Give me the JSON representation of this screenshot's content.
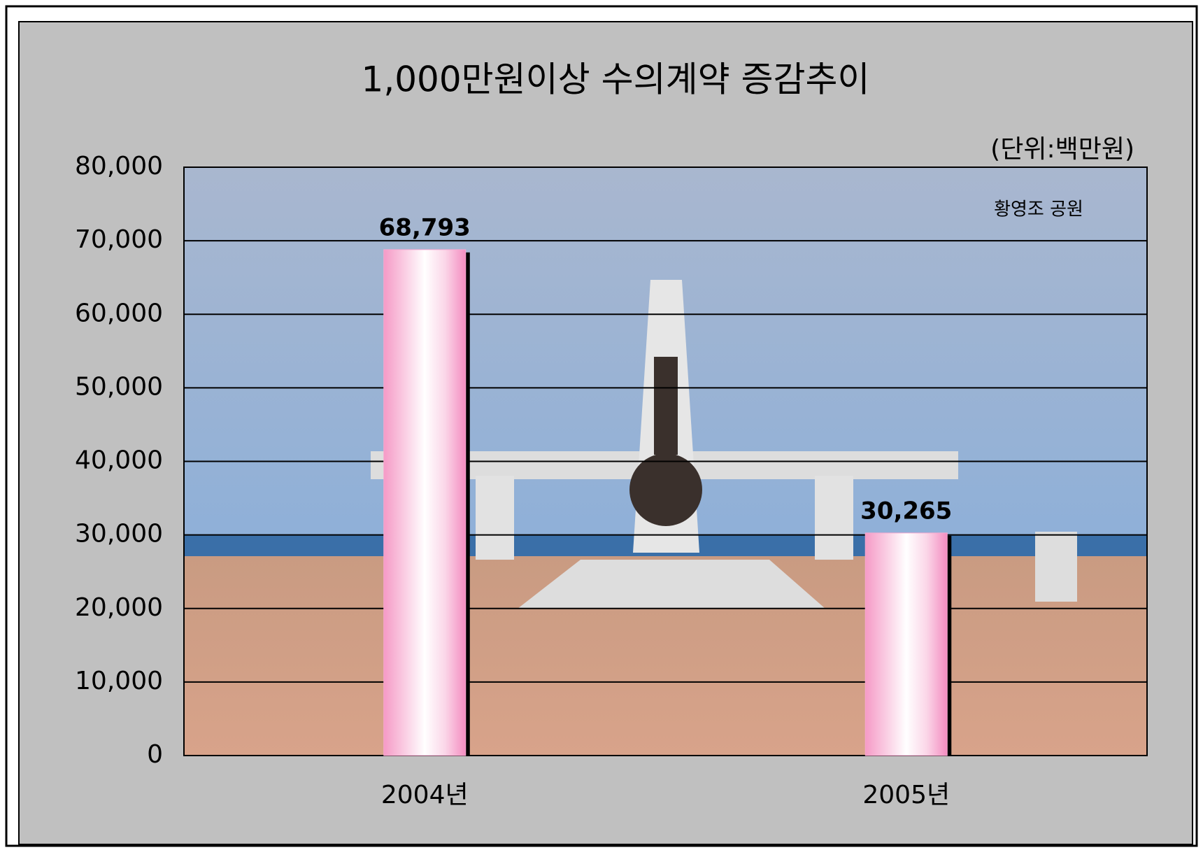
{
  "chart_data": {
    "type": "bar",
    "title": "1,000만원이상 수의계약 증감추이",
    "unit_label": "(단위:백만원)",
    "annotation": "황영조 공원",
    "categories": [
      "2004년",
      "2005년"
    ],
    "values": [
      68793,
      30265
    ],
    "value_labels": [
      "68,793",
      "30,265"
    ],
    "color": "#f7a8cf",
    "ylim": [
      0,
      80000
    ],
    "yticks": [
      0,
      {
        "value": 10000,
        "label": "10,000"
      },
      {
        "value": 20000,
        "label": "20,000"
      },
      {
        "value": 30000,
        "label": "30,000"
      },
      {
        "value": 40000,
        "label": "40,000"
      },
      {
        "value": 50000,
        "label": "50,000"
      },
      {
        "value": 60000,
        "label": "60,000"
      },
      {
        "value": 70000,
        "label": "70,000"
      },
      {
        "value": 80000,
        "label": "80,000"
      }
    ],
    "grid": true
  }
}
